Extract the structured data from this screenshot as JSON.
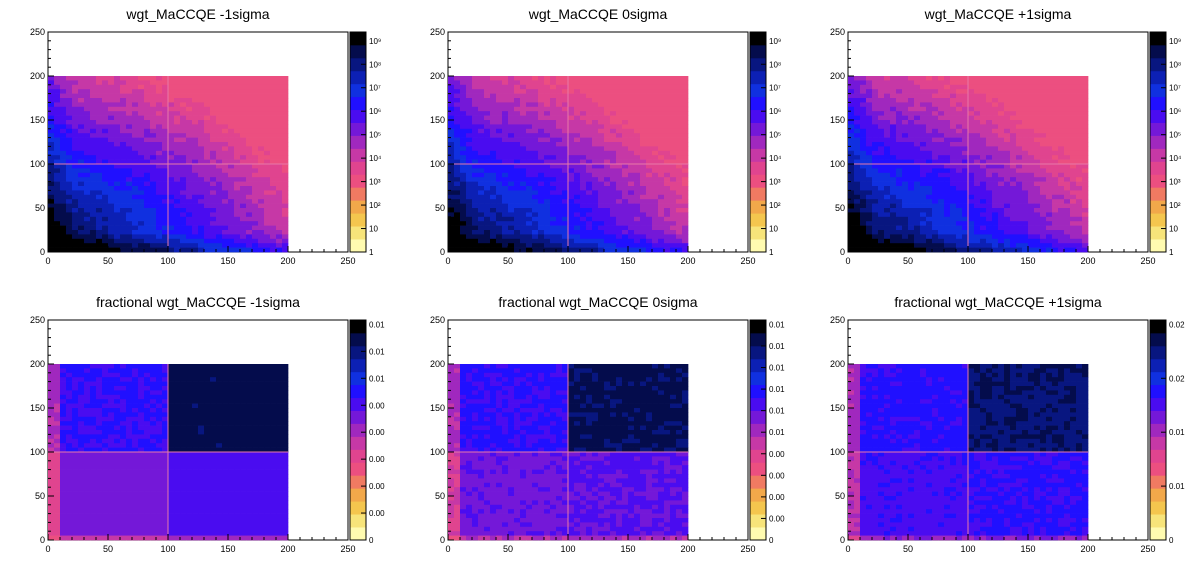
{
  "chart_data": [
    {
      "type": "heatmap",
      "title": "wgt_MaCCQE -1sigma",
      "xlim": [
        0,
        250
      ],
      "ylim": [
        0,
        250
      ],
      "xticks": [
        "0",
        "50",
        "100",
        "150",
        "200",
        "250"
      ],
      "yticks": [
        "0",
        "50",
        "100",
        "150",
        "200",
        "250"
      ],
      "colorbar": {
        "scale": "log",
        "range": [
          1,
          2000000000
        ],
        "labels": [
          "1",
          "10",
          "10²",
          "10³",
          "10⁴",
          "10⁵",
          "10⁶",
          "10⁷",
          "10⁸",
          "10⁹"
        ]
      },
      "filled_region": {
        "x": [
          0,
          200
        ],
        "y": [
          0,
          200
        ]
      },
      "seam": {
        "x": 100,
        "y": 100
      }
    },
    {
      "type": "heatmap",
      "title": "wgt_MaCCQE 0sigma",
      "xlim": [
        0,
        250
      ],
      "ylim": [
        0,
        250
      ],
      "xticks": [
        "0",
        "50",
        "100",
        "150",
        "200",
        "250"
      ],
      "yticks": [
        "0",
        "50",
        "100",
        "150",
        "200",
        "250"
      ],
      "colorbar": {
        "scale": "log",
        "range": [
          1,
          2000000000
        ],
        "labels": [
          "1",
          "10",
          "10²",
          "10³",
          "10⁴",
          "10⁵",
          "10⁶",
          "10⁷",
          "10⁸",
          "10⁹"
        ]
      },
      "filled_region": {
        "x": [
          0,
          200
        ],
        "y": [
          0,
          200
        ]
      },
      "seam": {
        "x": 100,
        "y": 100
      }
    },
    {
      "type": "heatmap",
      "title": "wgt_MaCCQE +1sigma",
      "xlim": [
        0,
        250
      ],
      "ylim": [
        0,
        250
      ],
      "xticks": [
        "0",
        "50",
        "100",
        "150",
        "200",
        "250"
      ],
      "yticks": [
        "0",
        "50",
        "100",
        "150",
        "200",
        "250"
      ],
      "colorbar": {
        "scale": "log",
        "range": [
          1,
          2000000000
        ],
        "labels": [
          "1",
          "10",
          "10²",
          "10³",
          "10⁴",
          "10⁵",
          "10⁶",
          "10⁷",
          "10⁸",
          "10⁹"
        ]
      },
      "filled_region": {
        "x": [
          0,
          200
        ],
        "y": [
          0,
          200
        ]
      },
      "seam": {
        "x": 100,
        "y": 100
      }
    },
    {
      "type": "heatmap",
      "title": "fractional wgt_MaCCQE -1sigma",
      "xlim": [
        0,
        250
      ],
      "ylim": [
        0,
        250
      ],
      "xticks": [
        "0",
        "50",
        "100",
        "150",
        "200",
        "250"
      ],
      "yticks": [
        "0",
        "50",
        "100",
        "150",
        "200",
        "250"
      ],
      "colorbar": {
        "scale": "linear",
        "labels": [
          "0",
          "0.00",
          "0.00",
          "0.00",
          "0.00",
          "0.00",
          "0.01",
          "0.01",
          "0.01"
        ]
      },
      "filled_region": {
        "x": [
          0,
          200
        ],
        "y": [
          0,
          200
        ]
      },
      "seam": {
        "x": 100,
        "y": 100
      }
    },
    {
      "type": "heatmap",
      "title": "fractional wgt_MaCCQE 0sigma",
      "xlim": [
        0,
        250
      ],
      "ylim": [
        0,
        250
      ],
      "xticks": [
        "0",
        "50",
        "100",
        "150",
        "200",
        "250"
      ],
      "yticks": [
        "0",
        "50",
        "100",
        "150",
        "200",
        "250"
      ],
      "colorbar": {
        "scale": "linear",
        "labels": [
          "0",
          "0.00",
          "0.00",
          "0.00",
          "0.00",
          "0.01",
          "0.01",
          "0.01",
          "0.01",
          "0.01",
          "0.01"
        ]
      },
      "filled_region": {
        "x": [
          0,
          200
        ],
        "y": [
          0,
          200
        ]
      },
      "seam": {
        "x": 100,
        "y": 100
      }
    },
    {
      "type": "heatmap",
      "title": "fractional wgt_MaCCQE +1sigma",
      "xlim": [
        0,
        250
      ],
      "ylim": [
        0,
        250
      ],
      "xticks": [
        "0",
        "50",
        "100",
        "150",
        "200",
        "250"
      ],
      "yticks": [
        "0",
        "50",
        "100",
        "150",
        "200",
        "250"
      ],
      "colorbar": {
        "scale": "linear",
        "labels": [
          "0",
          "0.01",
          "0.01",
          "0.02",
          "0.02"
        ]
      },
      "filled_region": {
        "x": [
          0,
          200
        ],
        "y": [
          0,
          200
        ]
      },
      "seam": {
        "x": 100,
        "y": 100
      }
    }
  ],
  "colors": {
    "palette": [
      "#fffbb0",
      "#f7e47a",
      "#f4c64e",
      "#f2a84a",
      "#f07a62",
      "#ec4f80",
      "#e0448f",
      "#c638a6",
      "#a028be",
      "#7418d8",
      "#4a0cf0",
      "#2010ff",
      "#1030e0",
      "#0c20b4",
      "#081680",
      "#040c4c",
      "#000000"
    ],
    "empty": "#ffffff",
    "seam": "#e879a8"
  }
}
